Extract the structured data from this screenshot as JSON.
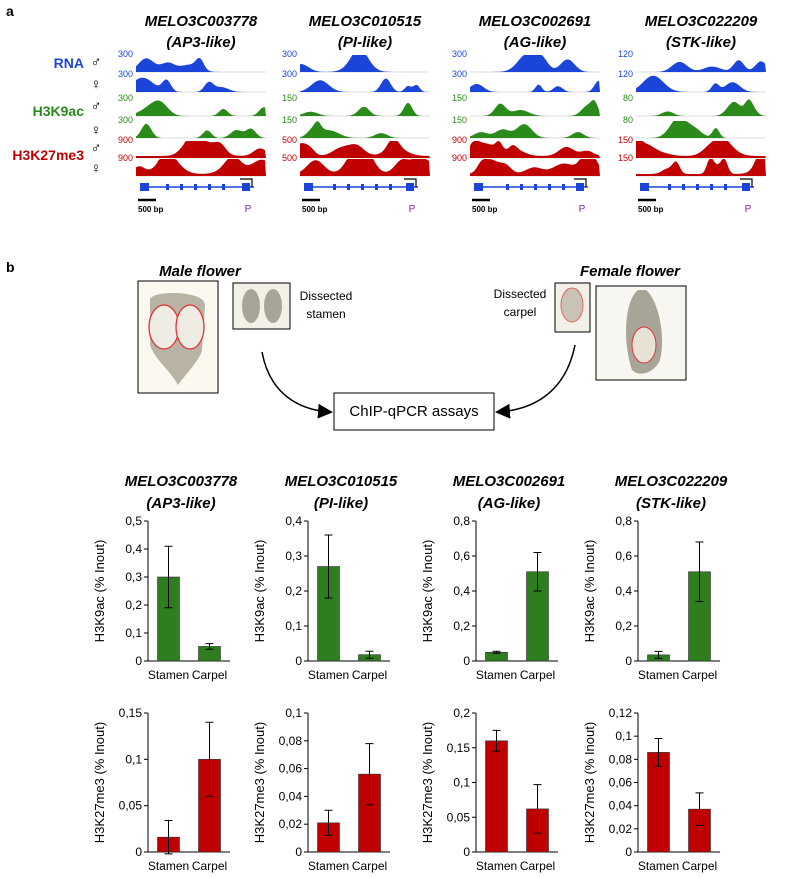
{
  "panel_a": {
    "label": "a",
    "tracks": [
      {
        "label": "RNA",
        "male": "♂",
        "female": "♀",
        "color": "#1a45d8"
      },
      {
        "label": "H3K9ac",
        "male": "♂",
        "female": "♀",
        "color": "#2a8a1a"
      },
      {
        "label": "H3K27me3",
        "male": "♂",
        "female": "♀",
        "color": "#c00000"
      }
    ],
    "genes": [
      {
        "name": "MELO3C003778",
        "alias": "(AP3-like)",
        "scales": [
          300,
          300,
          300,
          300,
          900,
          900
        ],
        "scale_bar": "500 bp",
        "promoter": "P"
      },
      {
        "name": "MELO3C010515",
        "alias": "(PI-like)",
        "scales": [
          300,
          300,
          150,
          150,
          500,
          500
        ],
        "scale_bar": "500 bp",
        "promoter": "P"
      },
      {
        "name": "MELO3C002691",
        "alias": "(AG-like)",
        "scales": [
          300,
          300,
          150,
          150,
          900,
          900
        ],
        "scale_bar": "500 bp",
        "promoter": "P"
      },
      {
        "name": "MELO3C022209",
        "alias": "(STK-like)",
        "scales": [
          120,
          120,
          80,
          80,
          150,
          150
        ],
        "scale_bar": "500 bp",
        "promoter": "P"
      }
    ]
  },
  "panel_b": {
    "label": "b",
    "male_flower": "Male flower",
    "female_flower": "Female flower",
    "dissected_stamen": [
      "Dissected",
      "stamen"
    ],
    "dissected_carpel": [
      "Dissected",
      "carpel"
    ],
    "assay": "ChIP-qPCR assays"
  },
  "chart_data": [
    {
      "type": "bar",
      "title": "MELO3C003778",
      "subtitle": "(AP3-like)",
      "y_label": "H3K9ac (% Inout)",
      "categories": [
        "Stamen",
        "Carpel"
      ],
      "values": [
        0.3,
        0.052
      ],
      "errors": [
        0.11,
        0.01
      ],
      "color": "#2e7d1e",
      "ylim": [
        0,
        0.5
      ],
      "yticks": [
        0,
        {
          "value": 0.1,
          "label": "0,1"
        },
        {
          "value": 0.2,
          "label": "0,2"
        },
        {
          "value": 0.3,
          "label": "0,3"
        },
        {
          "value": 0.4,
          "label": "0,4"
        },
        {
          "value": 0.5,
          "label": "0,5"
        }
      ]
    },
    {
      "type": "bar",
      "title": "MELO3C010515",
      "subtitle": "(PI-like)",
      "y_label": "H3K9ac (% Inout)",
      "categories": [
        "Stamen",
        "Carpel"
      ],
      "values": [
        0.27,
        0.018
      ],
      "errors": [
        0.09,
        0.01
      ],
      "color": "#2e7d1e",
      "ylim": [
        0,
        0.4
      ],
      "yticks": [
        0,
        {
          "value": 0.1,
          "label": "0,1"
        },
        {
          "value": 0.2,
          "label": "0,2"
        },
        {
          "value": 0.3,
          "label": "0,3"
        },
        {
          "value": 0.4,
          "label": "0,4"
        }
      ]
    },
    {
      "type": "bar",
      "title": "MELO3C002691",
      "subtitle": "(AG-like)",
      "y_label": "H3K9ac (% Inout)",
      "categories": [
        "Stamen",
        "Carpel"
      ],
      "values": [
        0.05,
        0.51
      ],
      "errors": [
        0.006,
        0.11
      ],
      "color": "#2e7d1e",
      "ylim": [
        0,
        0.8
      ],
      "yticks": [
        0,
        {
          "value": 0.2,
          "label": "0,2"
        },
        {
          "value": 0.4,
          "label": "0,4"
        },
        {
          "value": 0.6,
          "label": "0,6"
        },
        {
          "value": 0.8,
          "label": "0,8"
        }
      ]
    },
    {
      "type": "bar",
      "title": "MELO3C022209",
      "subtitle": "(STK-like)",
      "y_label": "H3K9ac (% Inout)",
      "categories": [
        "Stamen",
        "Carpel"
      ],
      "values": [
        0.035,
        0.51
      ],
      "errors": [
        0.02,
        0.17
      ],
      "color": "#2e7d1e",
      "ylim": [
        0,
        0.8
      ],
      "yticks": [
        0,
        {
          "value": 0.2,
          "label": "0,2"
        },
        {
          "value": 0.4,
          "label": "0,4"
        },
        {
          "value": 0.6,
          "label": "0,6"
        },
        {
          "value": 0.8,
          "label": "0,8"
        }
      ]
    },
    {
      "type": "bar",
      "y_label": "H3K27me3 (% Inout)",
      "categories": [
        "Stamen",
        "Carpel"
      ],
      "values": [
        0.016,
        0.1
      ],
      "errors": [
        0.018,
        0.04
      ],
      "color": "#c00000",
      "ylim": [
        0,
        0.15
      ],
      "yticks": [
        0,
        {
          "value": 0.05,
          "label": "0,05"
        },
        {
          "value": 0.1,
          "label": "0,1"
        },
        {
          "value": 0.15,
          "label": "0,15"
        }
      ]
    },
    {
      "type": "bar",
      "y_label": "H3K27me3 (% Inout)",
      "categories": [
        "Stamen",
        "Carpel"
      ],
      "values": [
        0.021,
        0.056
      ],
      "errors": [
        0.009,
        0.022
      ],
      "color": "#c00000",
      "ylim": [
        0,
        0.1
      ],
      "yticks": [
        0,
        {
          "value": 0.02,
          "label": "0,02"
        },
        {
          "value": 0.04,
          "label": "0,04"
        },
        {
          "value": 0.06,
          "label": "0,06"
        },
        {
          "value": 0.08,
          "label": "0,08"
        },
        {
          "value": 0.1,
          "label": "0,1"
        }
      ]
    },
    {
      "type": "bar",
      "y_label": "H3K27me3 (% Inout)",
      "categories": [
        "Stamen",
        "Carpel"
      ],
      "values": [
        0.16,
        0.062
      ],
      "errors": [
        0.015,
        0.035
      ],
      "color": "#c00000",
      "ylim": [
        0,
        0.2
      ],
      "yticks": [
        0,
        {
          "value": 0.05,
          "label": "0,05"
        },
        {
          "value": 0.1,
          "label": "0,1"
        },
        {
          "value": 0.15,
          "label": "0,15"
        },
        {
          "value": 0.2,
          "label": "0,2"
        }
      ]
    },
    {
      "type": "bar",
      "y_label": "H3K27me3 (% Inout)",
      "categories": [
        "Stamen",
        "Carpel"
      ],
      "values": [
        0.086,
        0.037
      ],
      "errors": [
        0.012,
        0.014
      ],
      "color": "#c00000",
      "ylim": [
        0,
        0.12
      ],
      "yticks": [
        0,
        {
          "value": 0.02,
          "label": "0,02"
        },
        {
          "value": 0.04,
          "label": "0,04"
        },
        {
          "value": 0.06,
          "label": "0,06"
        },
        {
          "value": 0.08,
          "label": "0,08"
        },
        {
          "value": 0.1,
          "label": "0,1"
        },
        {
          "value": 0.12,
          "label": "0,12"
        }
      ]
    }
  ]
}
